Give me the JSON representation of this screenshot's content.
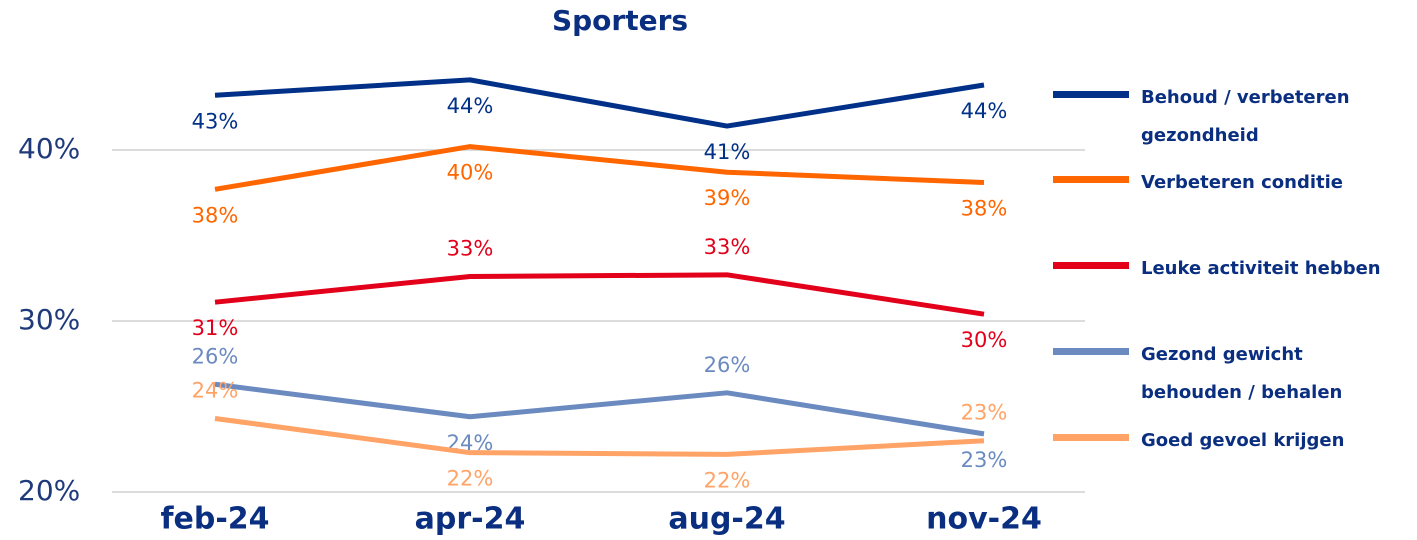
{
  "chart_data": {
    "type": "line",
    "title": "Sporters",
    "categories": [
      "feb-24",
      "apr-24",
      "aug-24",
      "nov-24"
    ],
    "ylim": [
      20,
      45
    ],
    "yticks": [
      {
        "value": 20,
        "label": "20%"
      },
      {
        "value": 30,
        "label": "30%"
      },
      {
        "value": 40,
        "label": "40%"
      }
    ],
    "grid": true,
    "legend": "right",
    "series": [
      {
        "name": "Behoud / verbeteren gezondheid",
        "color": "#003087",
        "values": [
          43.2,
          44.1,
          41.4,
          43.8
        ],
        "value_labels": [
          "43%",
          "44%",
          "41%",
          "44%"
        ]
      },
      {
        "name": "Verbeteren conditie",
        "color": "#ff6600",
        "values": [
          37.7,
          40.2,
          38.7,
          38.1
        ],
        "value_labels": [
          "38%",
          "40%",
          "39%",
          "38%"
        ]
      },
      {
        "name": "Leuke activiteit hebben",
        "color": "#e2001a",
        "values": [
          31.1,
          32.6,
          32.7,
          30.4
        ],
        "value_labels": [
          "31%",
          "33%",
          "33%",
          "30%"
        ]
      },
      {
        "name": "Gezond gewicht behouden / behalen",
        "color": "#6a8ac0",
        "values": [
          26.3,
          24.4,
          25.8,
          23.4
        ],
        "value_labels": [
          "26%",
          "24%",
          "26%",
          "23%"
        ]
      },
      {
        "name": "Goed gevoel krijgen",
        "color": "#ffa366",
        "values": [
          24.3,
          22.3,
          22.2,
          23.0
        ],
        "value_labels": [
          "24%",
          "22%",
          "22%",
          "23%"
        ]
      }
    ]
  }
}
